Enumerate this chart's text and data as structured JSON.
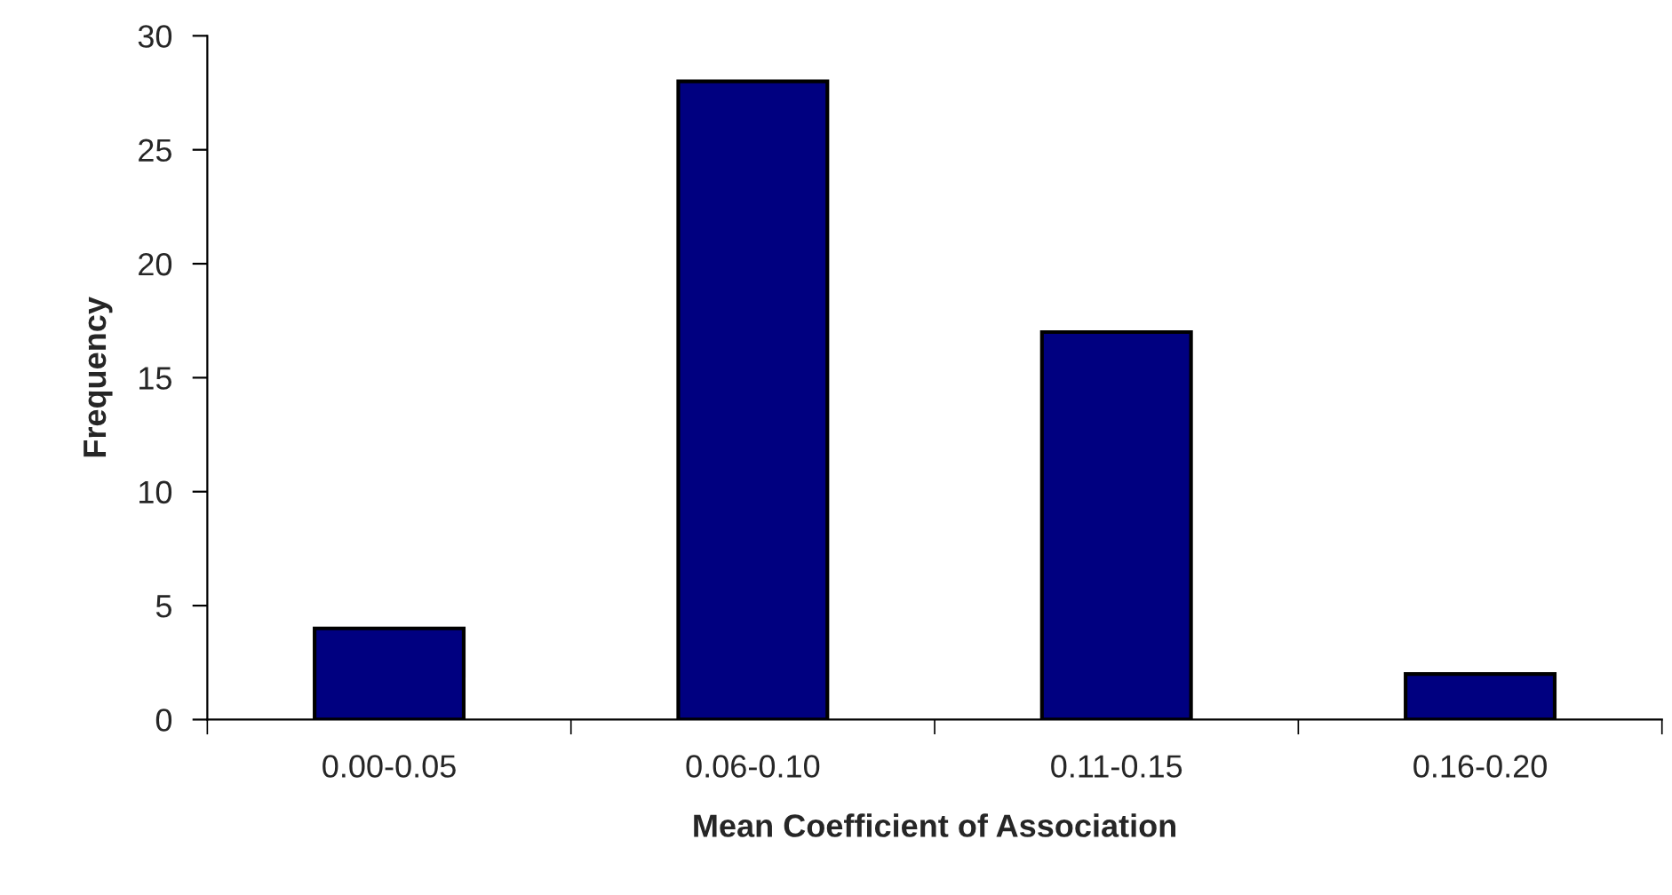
{
  "chart_data": {
    "type": "bar",
    "xlabel": "Mean Coefficient of Association",
    "ylabel": "Frequency",
    "categories": [
      "0.00-0.05",
      "0.06-0.10",
      "0.11-0.15",
      "0.16-0.20"
    ],
    "values": [
      4,
      28,
      17,
      2
    ],
    "color": "#000080",
    "ylim": [
      0,
      30
    ],
    "yticks": [
      0,
      5,
      10,
      15,
      20,
      25,
      30
    ],
    "grid": false
  }
}
